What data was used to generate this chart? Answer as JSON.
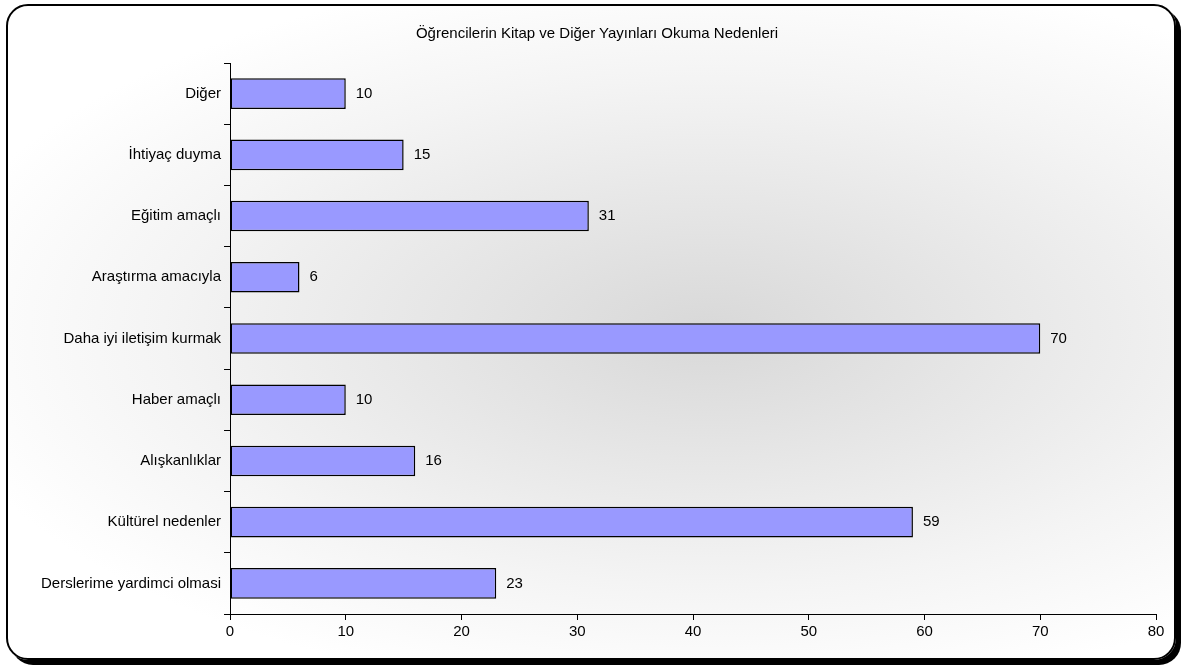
{
  "chart_data": {
    "type": "bar",
    "orientation": "horizontal",
    "title": "Öğrencilerin Kitap ve Diğer Yayınları Okuma Nedenleri",
    "categories": [
      "Diğer",
      "İhtiyaç duyma",
      "Eğitim amaçlı",
      "Araştırma amacıyla",
      "Daha iyi iletişim kurmak",
      "Haber amaçlı",
      "Alışkanlıklar",
      "Kültürel nedenler",
      "Derslerime yardimci olmasi"
    ],
    "values": [
      10,
      15,
      31,
      6,
      70,
      10,
      16,
      59,
      23
    ],
    "color": "#9999ff",
    "xlim": [
      0,
      80
    ],
    "xticks": [
      0,
      10,
      20,
      30,
      40,
      50,
      60,
      70,
      80
    ],
    "grid": false,
    "legend": false,
    "data_labels": true
  }
}
